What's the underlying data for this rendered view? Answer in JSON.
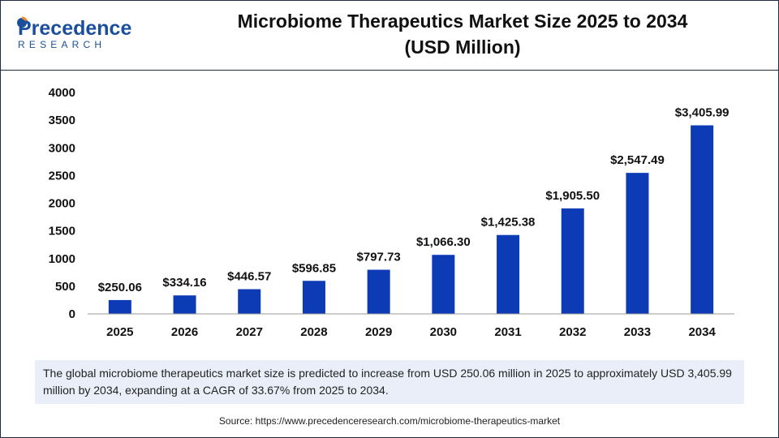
{
  "brand": {
    "name": "Precedence",
    "sub": "RESEARCH"
  },
  "header": {
    "title_line1": "Microbiome Therapeutics Market Size 2025 to 2034",
    "title_line2": "(USD Million)"
  },
  "chart_data": {
    "type": "bar",
    "title": "Microbiome Therapeutics Market Size 2025 to 2034 (USD Million)",
    "xlabel": "",
    "ylabel": "",
    "categories": [
      "2025",
      "2026",
      "2027",
      "2028",
      "2029",
      "2030",
      "2031",
      "2032",
      "2033",
      "2034"
    ],
    "values": [
      250.06,
      334.16,
      446.57,
      596.85,
      797.73,
      1066.3,
      1425.38,
      1905.5,
      2547.49,
      3405.99
    ],
    "value_labels": [
      "$250.06",
      "$334.16",
      "$446.57",
      "$596.85",
      "$797.73",
      "$1,066.30",
      "$1,425.38",
      "$1,905.50",
      "$2,547.49",
      "$3,405.99"
    ],
    "ylim": [
      0,
      4000
    ],
    "yticks": [
      "0",
      "500",
      "1000",
      "1500",
      "2000",
      "2500",
      "3000",
      "3500",
      "4000"
    ],
    "grid": false,
    "bar_color": "#0d3bb5"
  },
  "caption": "The global microbiome therapeutics market size is predicted to increase from USD 250.06 million in 2025 to approximately USD 3,405.99 million by 2034, expanding at a CAGR of 33.67% from 2025 to 2034.",
  "source": "Source: https://www.precedenceresearch.com/microbiome-therapeutics-market",
  "colors": {
    "brand_blue": "#1b4f9c",
    "brand_orange": "#f28c28",
    "text": "#111111"
  }
}
